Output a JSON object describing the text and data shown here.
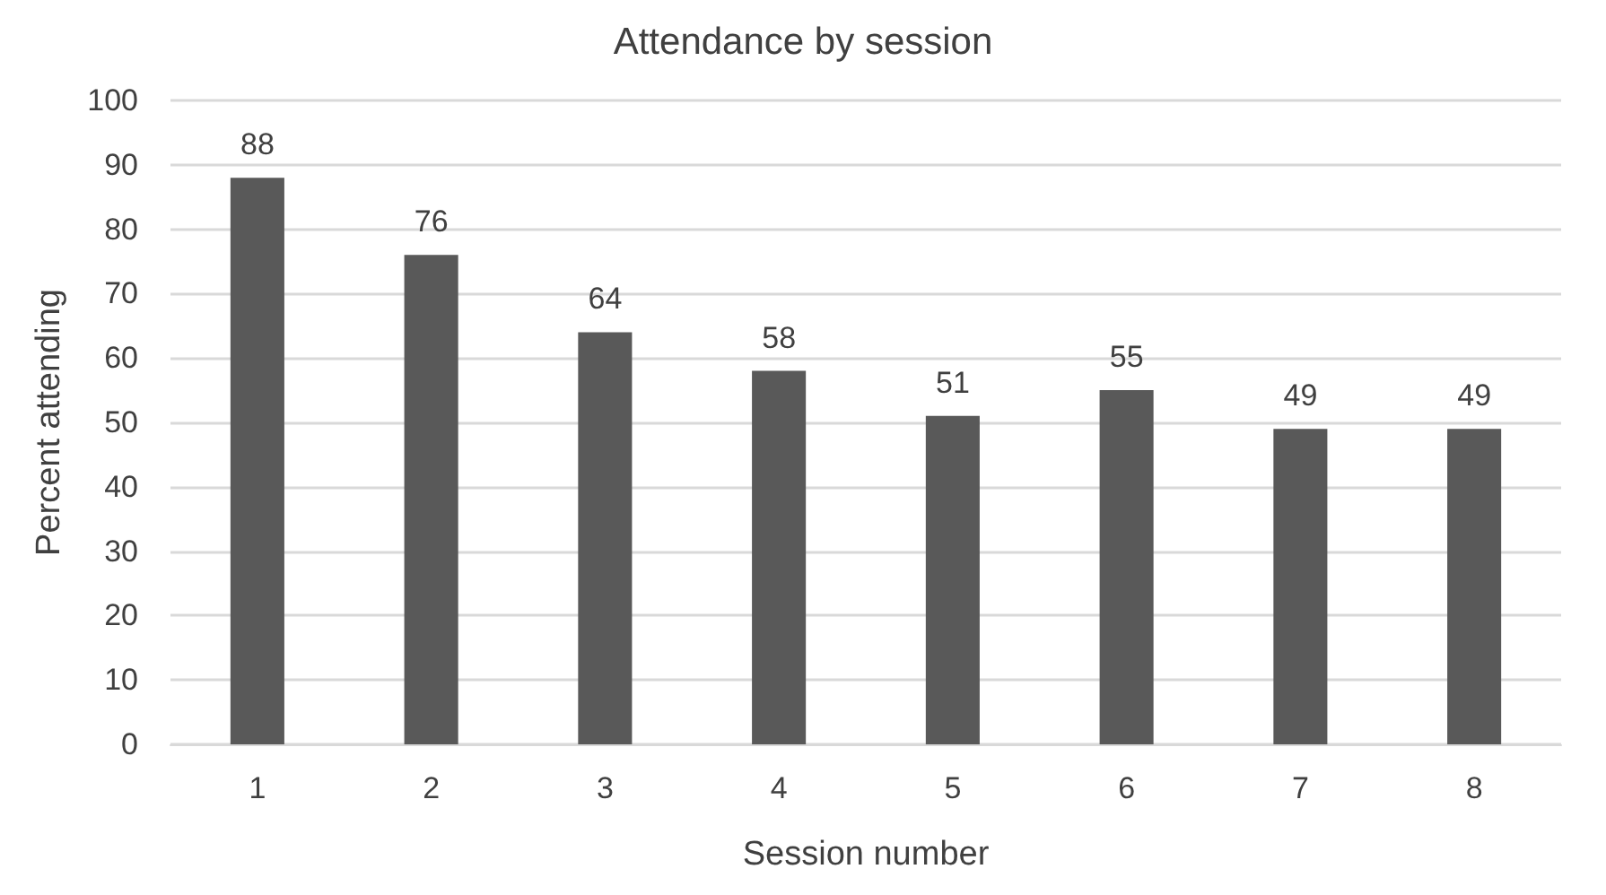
{
  "chart_data": {
    "type": "bar",
    "title": "Attendance by session",
    "xlabel": "Session number",
    "ylabel": "Percent attending",
    "categories": [
      "1",
      "2",
      "3",
      "4",
      "5",
      "6",
      "7",
      "8"
    ],
    "values": [
      88,
      76,
      64,
      58,
      51,
      55,
      49,
      49
    ],
    "color": "#595959",
    "ylim": [
      0,
      100
    ],
    "yticks": [
      0,
      10,
      20,
      30,
      40,
      50,
      60,
      70,
      80,
      90,
      100
    ],
    "grid": "y",
    "data_labels": true
  }
}
